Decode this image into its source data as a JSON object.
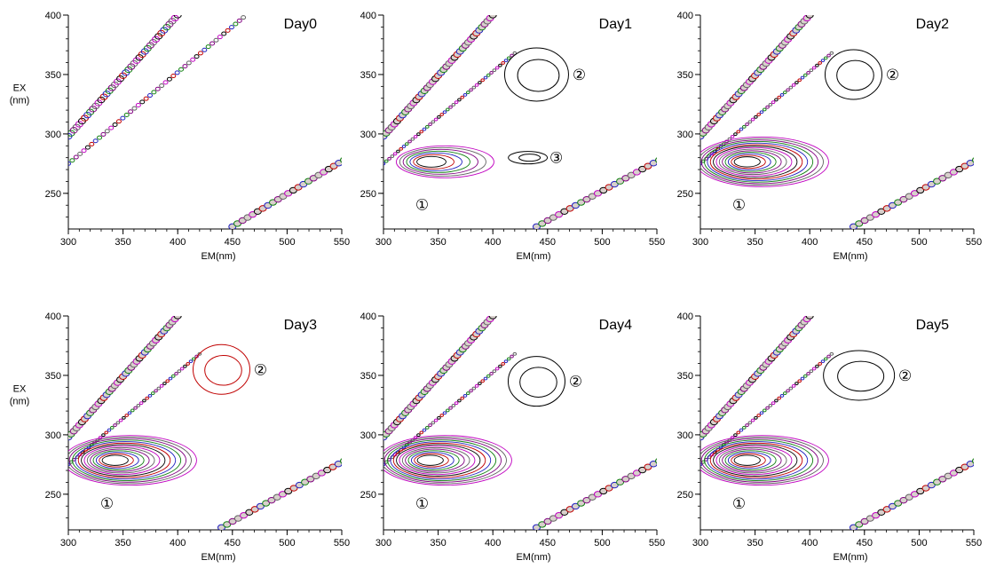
{
  "figure": {
    "panels": [
      {
        "title": "Day0",
        "ylabel": "EX",
        "ylabel_unit": "(nm)",
        "xlabel": "EM(nm)"
      },
      {
        "title": "Day1",
        "ylabel": "",
        "ylabel_unit": "",
        "xlabel": "EM(nm)"
      },
      {
        "title": "Day2",
        "ylabel": "",
        "ylabel_unit": "",
        "xlabel": "EM(nm)"
      },
      {
        "title": "Day3",
        "ylabel": "EX",
        "ylabel_unit": "(nm)",
        "xlabel": "EM(nm)"
      },
      {
        "title": "Day4",
        "ylabel": "",
        "ylabel_unit": "",
        "xlabel": "EM(nm)"
      },
      {
        "title": "Day5",
        "ylabel": "",
        "ylabel_unit": "",
        "xlabel": "EM(nm)"
      }
    ]
  },
  "chart_data": [
    {
      "type": "contour",
      "title": "Day0",
      "xlabel": "EM(nm)",
      "ylabel": "EX (nm)",
      "xlim": [
        300,
        550
      ],
      "ylim": [
        220,
        400
      ],
      "xticks": [
        300,
        350,
        400,
        450,
        500,
        550
      ],
      "yticks": [
        250,
        300,
        350,
        400
      ],
      "peaks": []
    },
    {
      "type": "contour",
      "title": "Day1",
      "xlabel": "EM(nm)",
      "ylabel": "EX (nm)",
      "xlim": [
        300,
        550
      ],
      "ylim": [
        220,
        400
      ],
      "xticks": [
        300,
        350,
        400,
        450,
        500,
        550
      ],
      "yticks": [
        250,
        300,
        350,
        400
      ],
      "peaks": [
        {
          "label": "①",
          "em": 345,
          "ex": 278
        },
        {
          "label": "②",
          "em": 440,
          "ex": 350
        },
        {
          "label": "③",
          "em": 432,
          "ex": 280
        }
      ]
    },
    {
      "type": "contour",
      "title": "Day2",
      "xlabel": "EM(nm)",
      "ylabel": "EX (nm)",
      "xlim": [
        300,
        550
      ],
      "ylim": [
        220,
        400
      ],
      "xticks": [
        300,
        350,
        400,
        450,
        500,
        550
      ],
      "yticks": [
        250,
        300,
        350,
        400
      ],
      "peaks": [
        {
          "label": "①",
          "em": 345,
          "ex": 278
        },
        {
          "label": "②",
          "em": 440,
          "ex": 350
        }
      ]
    },
    {
      "type": "contour",
      "title": "Day3",
      "xlabel": "EM(nm)",
      "ylabel": "EX (nm)",
      "xlim": [
        300,
        550
      ],
      "ylim": [
        220,
        400
      ],
      "xticks": [
        300,
        350,
        400,
        450,
        500,
        550
      ],
      "yticks": [
        250,
        300,
        350,
        400
      ],
      "peaks": [
        {
          "label": "①",
          "em": 345,
          "ex": 280
        },
        {
          "label": "②",
          "em": 440,
          "ex": 355
        }
      ]
    },
    {
      "type": "contour",
      "title": "Day4",
      "xlabel": "EM(nm)",
      "ylabel": "EX (nm)",
      "xlim": [
        300,
        550
      ],
      "ylim": [
        220,
        400
      ],
      "xticks": [
        300,
        350,
        400,
        450,
        500,
        550
      ],
      "yticks": [
        250,
        300,
        350,
        400
      ],
      "peaks": [
        {
          "label": "①",
          "em": 345,
          "ex": 280
        },
        {
          "label": "②",
          "em": 440,
          "ex": 345
        }
      ]
    },
    {
      "type": "contour",
      "title": "Day5",
      "xlabel": "EM(nm)",
      "ylabel": "EX (nm)",
      "xlim": [
        300,
        550
      ],
      "ylim": [
        220,
        400
      ],
      "xticks": [
        300,
        350,
        400,
        450,
        500,
        550
      ],
      "yticks": [
        250,
        300,
        350,
        400
      ],
      "peaks": [
        {
          "label": "①",
          "em": 345,
          "ex": 280
        },
        {
          "label": "②",
          "em": 445,
          "ex": 350
        }
      ]
    }
  ]
}
